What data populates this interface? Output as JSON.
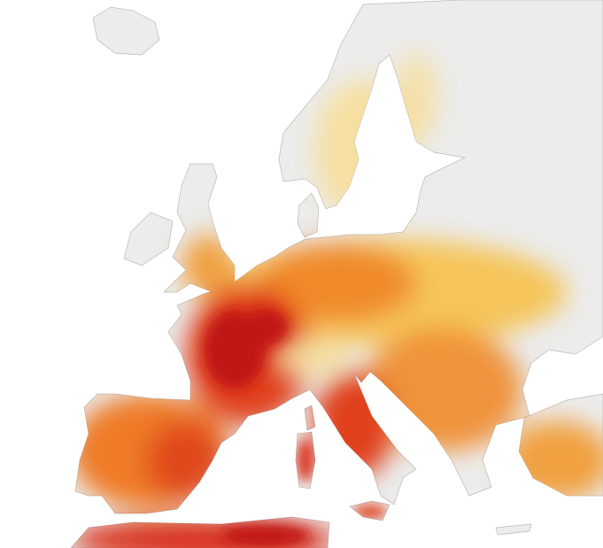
{
  "map": {
    "colors": {
      "land": "#ececec",
      "coast": "#b9b9b9",
      "sea": "#ffffff",
      "pale": "#f7dc8f",
      "yellow": "#f5c55a",
      "orange": "#f08a2a",
      "red": "#e0401a",
      "dark_red": "#c01414"
    }
  }
}
